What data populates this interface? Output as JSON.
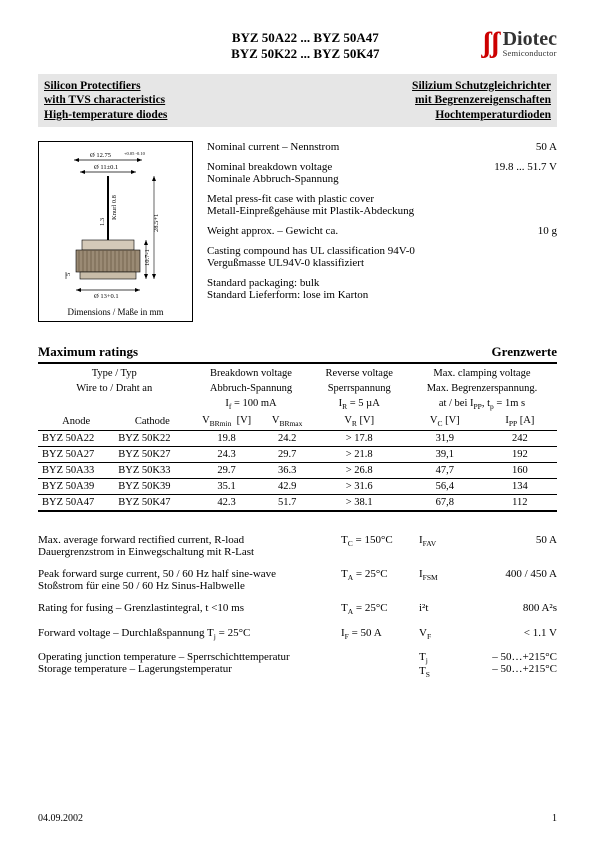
{
  "header": {
    "line1": "BYZ 50A22 ... BYZ 50A47",
    "line2": "BYZ 50K22 ... BYZ 50K47",
    "logo_big": "Diotec",
    "logo_small": "Semiconductor"
  },
  "graybar": {
    "left1": "Silicon Protectifiers",
    "left2": "with TVS characteristics",
    "left3": "High-temperature diodes",
    "right1": "Silizium Schutzgleichrichter",
    "right2": "mit Begrenzereigenschaften",
    "right3": "Hochtemperaturdioden"
  },
  "dimbox": {
    "d1": "Ø 12.75",
    "d1tol": "+0.05 -0.10",
    "d2": "Ø 11±0.1",
    "knurl": "Knurl 0.8",
    "h1": "1.3",
    "h2": "28.5+1",
    "h3": "10.7-1",
    "h4": "5",
    "d3": "Ø 13+0.1",
    "caption": "Dimensions / Maße in mm"
  },
  "specs": {
    "r1l": "Nominal current – Nennstrom",
    "r1v": "50 A",
    "r2l1": "Nominal breakdown voltage",
    "r2l2": "Nominale Abbruch-Spannung",
    "r2v": "19.8 ... 51.7 V",
    "r3l1": "Metal press-fit case with plastic cover",
    "r3l2": "Metall-Einpreßgehäuse mit Plastik-Abdeckung",
    "r4l": "Weight approx. – Gewicht ca.",
    "r4v": "10 g",
    "r5l1": "Casting compound has UL classification 94V-0",
    "r5l2": "Vergußmasse UL94V-0 klassifiziert",
    "r6l1": "Standard packaging: bulk",
    "r6l2": "Standard Lieferform: lose im Karton"
  },
  "sec": {
    "left": "Maximum ratings",
    "right": "Grenzwerte"
  },
  "thead": {
    "type": "Type / Typ",
    "wire": "Wire to / Draht an",
    "bv1": "Breakdown voltage",
    "bv2": "Abbruch-Spannung",
    "bv3": "I",
    "bv3s": "f",
    "bv3e": " = 100 mA",
    "rv1": "Reverse voltage",
    "rv2": "Sperrspannung",
    "rv3": "I",
    "rv3s": "R",
    "rv3e": " = 5 µA",
    "mc1": "Max. clamping voltage",
    "mc2": "Max. Begrenzerspannung.",
    "mc3a": "at / bei I",
    "mc3s": "PP",
    "mc3b": ", t",
    "mc3s2": "p",
    "mc3c": " = 1m s",
    "anode": "Anode",
    "cathode": "Cathode",
    "vbrmin": "V",
    "vbrmins": "BRmin",
    "vbrmax": "V",
    "vbrmaxs": "BRmax",
    "vr": "V",
    "vrs": "R",
    "vc": "V",
    "vcs": "C",
    "ipp": "I",
    "ipps": "PP",
    "unitv": "[V]",
    "unita": "[A]"
  },
  "rows": [
    {
      "a": "BYZ 50A22",
      "c": "BYZ 50K22",
      "bmin": "19.8",
      "bmax": "24.2",
      "vr": "> 17.8",
      "vc": "31,9",
      "ipp": "242"
    },
    {
      "a": "BYZ 50A27",
      "c": "BYZ 50K27",
      "bmin": "24.3",
      "bmax": "29.7",
      "vr": "> 21.8",
      "vc": "39,1",
      "ipp": "192"
    },
    {
      "a": "BYZ 50A33",
      "c": "BYZ 50K33",
      "bmin": "29.7",
      "bmax": "36.3",
      "vr": "> 26.8",
      "vc": "47,7",
      "ipp": "160"
    },
    {
      "a": "BYZ 50A39",
      "c": "BYZ 50K39",
      "bmin": "35.1",
      "bmax": "42.9",
      "vr": "> 31.6",
      "vc": "56,4",
      "ipp": "134"
    },
    {
      "a": "BYZ 50A47",
      "c": "BYZ 50K47",
      "bmin": "42.3",
      "bmax": "51.7",
      "vr": "> 38.1",
      "vc": "67,8",
      "ipp": "112"
    }
  ],
  "params": [
    {
      "l1": "Max. average forward rectified current, R-load",
      "l2": "Dauergrenzstrom in Einwegschaltung mit R-Last",
      "cond": "T_C = 150°C",
      "sym": "I_FAV",
      "val": "50 A"
    },
    {
      "l1": "Peak forward surge current, 50 / 60 Hz half sine-wave",
      "l2": "Stoßstrom für eine 50 / 60 Hz Sinus-Halbwelle",
      "cond": "T_A = 25°C",
      "sym": "I_FSM",
      "val": "400 / 450 A"
    },
    {
      "l1": "Rating for fusing – Grenzlastintegral, t <10 ms",
      "l2": "",
      "cond": "T_A = 25°C",
      "sym": "i²t",
      "val": "800 A²s"
    },
    {
      "l1": "Forward voltage – Durchlaßspannung        T_j  = 25°C",
      "l2": "",
      "cond": "I_F = 50 A",
      "sym": "V_F",
      "val": "< 1.1 V"
    },
    {
      "l1": "Operating junction temperature – Sperrschichttemperatur",
      "l2": "Storage temperature – Lagerungstemperatur",
      "cond": "",
      "sym": "T_j\nT_S",
      "val": "– 50…+215°C\n– 50…+215°C"
    }
  ],
  "footer": {
    "date": "04.09.2002",
    "page": "1"
  }
}
